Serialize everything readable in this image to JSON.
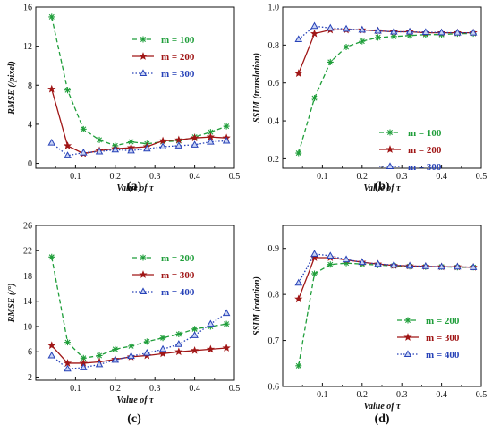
{
  "chart_data": [
    {
      "type": "line",
      "panel_label": "(a)",
      "xlabel": "Value of τ",
      "ylabel": "RMSE (/pixel)",
      "xlim": [
        0.0,
        0.5
      ],
      "ylim": [
        -0.5,
        16
      ],
      "xticks": [
        "0.1",
        "0.2",
        "0.3",
        "0.4",
        "0.5"
      ],
      "yticks": [
        "0",
        "4",
        "8",
        "12",
        "16"
      ],
      "legend_position": "top-right",
      "x": [
        0.04,
        0.08,
        0.12,
        0.16,
        0.2,
        0.24,
        0.28,
        0.32,
        0.36,
        0.4,
        0.44,
        0.48
      ],
      "series": [
        {
          "name": "m = 100",
          "color": "#1f9e3a",
          "marker": "asterisk",
          "dash": "dash",
          "values": [
            15.0,
            7.5,
            3.5,
            2.4,
            1.8,
            2.2,
            2.0,
            2.2,
            2.3,
            2.7,
            3.2,
            3.8
          ]
        },
        {
          "name": "m = 200",
          "color": "#a01616",
          "marker": "star",
          "dash": "solid",
          "values": [
            7.6,
            1.8,
            1.0,
            1.3,
            1.5,
            1.6,
            1.7,
            2.3,
            2.4,
            2.6,
            2.7,
            2.6
          ]
        },
        {
          "name": "m = 300",
          "color": "#2742b8",
          "marker": "triangle",
          "dash": "dot",
          "values": [
            2.1,
            0.8,
            1.1,
            1.2,
            1.4,
            1.3,
            1.5,
            1.7,
            1.8,
            1.9,
            2.2,
            2.3
          ]
        }
      ]
    },
    {
      "type": "line",
      "panel_label": "(b)",
      "xlabel": "Value of τ",
      "ylabel": "SSIM (translation)",
      "xlim": [
        0.0,
        0.5
      ],
      "ylim": [
        0.15,
        1.0
      ],
      "xticks": [
        "0.1",
        "0.2",
        "0.3",
        "0.4",
        "0.5"
      ],
      "yticks": [
        "0.2",
        "0.4",
        "0.6",
        "0.8",
        "1.0"
      ],
      "legend_position": "center-right",
      "x": [
        0.04,
        0.08,
        0.12,
        0.16,
        0.2,
        0.24,
        0.28,
        0.32,
        0.36,
        0.4,
        0.44,
        0.48
      ],
      "series": [
        {
          "name": "m = 100",
          "color": "#1f9e3a",
          "marker": "asterisk",
          "dash": "dash",
          "values": [
            0.23,
            0.52,
            0.71,
            0.79,
            0.82,
            0.84,
            0.845,
            0.85,
            0.855,
            0.855,
            0.86,
            0.86
          ]
        },
        {
          "name": "m = 200",
          "color": "#a01616",
          "marker": "star",
          "dash": "solid",
          "values": [
            0.65,
            0.86,
            0.88,
            0.88,
            0.88,
            0.875,
            0.87,
            0.87,
            0.865,
            0.865,
            0.865,
            0.865
          ]
        },
        {
          "name": "m = 300",
          "color": "#2742b8",
          "marker": "triangle",
          "dash": "dot",
          "values": [
            0.83,
            0.9,
            0.89,
            0.885,
            0.88,
            0.875,
            0.87,
            0.87,
            0.868,
            0.866,
            0.865,
            0.865
          ]
        }
      ]
    },
    {
      "type": "line",
      "panel_label": "(c)",
      "xlabel": "Value of τ",
      "ylabel": "RMSE (/°)",
      "xlim": [
        0.0,
        0.5
      ],
      "ylim": [
        1.5,
        26
      ],
      "xticks": [
        "0.1",
        "0.2",
        "0.3",
        "0.4",
        "0.5"
      ],
      "yticks": [
        "2",
        "6",
        "10",
        "14",
        "18",
        "22",
        "26"
      ],
      "legend_position": "top-right",
      "x": [
        0.04,
        0.08,
        0.12,
        0.16,
        0.2,
        0.24,
        0.28,
        0.32,
        0.36,
        0.4,
        0.44,
        0.48
      ],
      "series": [
        {
          "name": "m = 200",
          "color": "#1f9e3a",
          "marker": "asterisk",
          "dash": "dash",
          "values": [
            21.0,
            7.5,
            5.0,
            5.4,
            6.4,
            6.9,
            7.6,
            8.2,
            8.8,
            9.6,
            10.0,
            10.4
          ]
        },
        {
          "name": "m = 300",
          "color": "#a01616",
          "marker": "star",
          "dash": "solid",
          "values": [
            7.0,
            4.2,
            4.2,
            4.4,
            4.8,
            5.2,
            5.4,
            5.7,
            6.0,
            6.2,
            6.4,
            6.6
          ]
        },
        {
          "name": "m = 400",
          "color": "#2742b8",
          "marker": "triangle",
          "dash": "dot",
          "values": [
            5.4,
            3.3,
            3.5,
            4.0,
            4.7,
            5.3,
            5.8,
            6.4,
            7.2,
            8.6,
            10.4,
            12.1
          ]
        }
      ]
    },
    {
      "type": "line",
      "panel_label": "(d)",
      "xlabel": "Value of τ",
      "ylabel": "SSIM (rotation)",
      "xlim": [
        0.0,
        0.5
      ],
      "ylim": [
        0.6,
        0.95
      ],
      "xticks": [
        "0.1",
        "0.2",
        "0.3",
        "0.4",
        "0.5"
      ],
      "yticks": [
        "0.6",
        "0.7",
        "0.8",
        "0.9"
      ],
      "legend_position": "lower-right",
      "x": [
        0.04,
        0.08,
        0.12,
        0.16,
        0.2,
        0.24,
        0.28,
        0.32,
        0.36,
        0.4,
        0.44,
        0.48
      ],
      "series": [
        {
          "name": "m = 200",
          "color": "#1f9e3a",
          "marker": "asterisk",
          "dash": "dash",
          "values": [
            0.645,
            0.845,
            0.865,
            0.868,
            0.866,
            0.864,
            0.862,
            0.861,
            0.86,
            0.86,
            0.859,
            0.859
          ]
        },
        {
          "name": "m = 300",
          "color": "#a01616",
          "marker": "star",
          "dash": "solid",
          "values": [
            0.79,
            0.88,
            0.88,
            0.875,
            0.87,
            0.866,
            0.863,
            0.862,
            0.861,
            0.86,
            0.86,
            0.859
          ]
        },
        {
          "name": "m = 400",
          "color": "#2742b8",
          "marker": "triangle",
          "dash": "dot",
          "values": [
            0.825,
            0.888,
            0.884,
            0.876,
            0.87,
            0.866,
            0.864,
            0.862,
            0.861,
            0.86,
            0.86,
            0.859
          ]
        }
      ]
    }
  ]
}
